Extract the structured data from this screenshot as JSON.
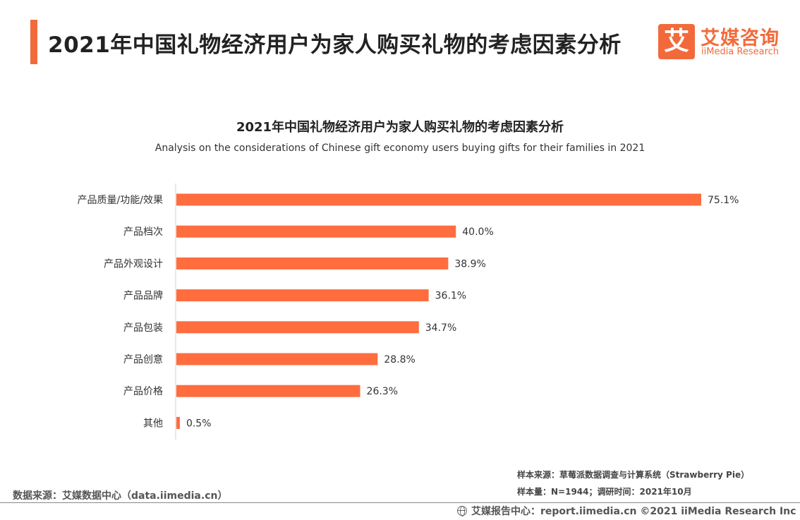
{
  "header": {
    "title": "2021年中国礼物经济用户为家人购买礼物的考虑因素分析"
  },
  "logo": {
    "badge": "艾",
    "cn": "艾媒咨询",
    "en": "iiMedia Research"
  },
  "chart_data": {
    "type": "bar",
    "orientation": "horizontal",
    "title": "2021年中国礼物经济用户为家人购买礼物的考虑因素分析",
    "subtitle": "Analysis on the considerations of Chinese gift economy users buying gifts for their families in 2021",
    "categories": [
      "产品质量/功能/效果",
      "产品档次",
      "产品外观设计",
      "产品品牌",
      "产品包装",
      "产品创意",
      "产品价格",
      "其他"
    ],
    "values": [
      75.1,
      40.0,
      38.9,
      36.1,
      34.7,
      28.8,
      26.3,
      0.5
    ],
    "value_labels": [
      "75.1%",
      "40.0%",
      "38.9%",
      "36.1%",
      "34.7%",
      "28.8%",
      "26.3%",
      "0.5%"
    ],
    "unit": "%",
    "xlim": [
      0,
      75.1
    ],
    "grid": false,
    "legend": "none",
    "bar_color": "#ff6d3f"
  },
  "notes": {
    "sample_source": "样本来源：草莓派数据调查与计算系统（Strawberry Pie）",
    "sample_size": "样本量：N=1944；调研时间：2021年10月"
  },
  "source": "数据来源：艾媒数据中心（data.iimedia.cn）",
  "footer": {
    "text": "艾媒报告中心：report.iimedia.cn   ©2021  iiMedia Research  Inc",
    "icon": "globe-icon"
  }
}
